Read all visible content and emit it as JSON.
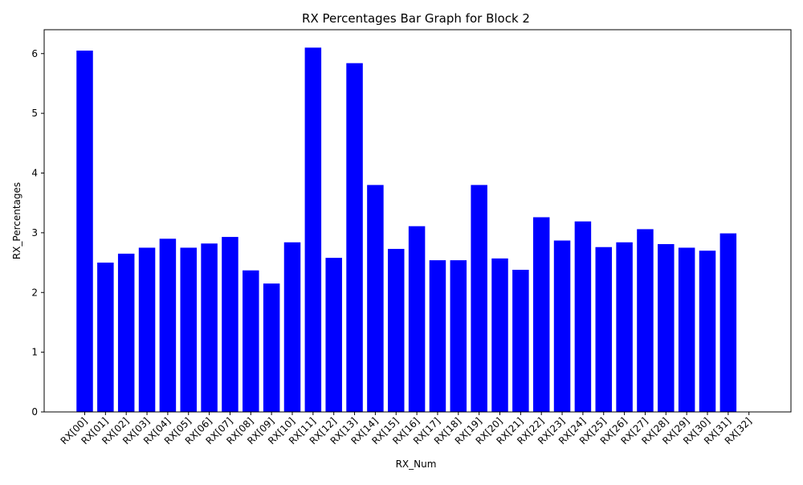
{
  "chart_data": {
    "type": "bar",
    "title": "RX Percentages Bar Graph for Block 2",
    "xlabel": "RX_Num",
    "ylabel": "RX_Percentages",
    "bar_color": "#0000ff",
    "categories": [
      "RX[00]",
      "RX[01]",
      "RX[02]",
      "RX[03]",
      "RX[04]",
      "RX[05]",
      "RX[06]",
      "RX[07]",
      "RX[08]",
      "RX[09]",
      "RX[10]",
      "RX[11]",
      "RX[12]",
      "RX[13]",
      "RX[14]",
      "RX[15]",
      "RX[16]",
      "RX[17]",
      "RX[18]",
      "RX[19]",
      "RX[20]",
      "RX[21]",
      "RX[22]",
      "RX[23]",
      "RX[24]",
      "RX[25]",
      "RX[26]",
      "RX[27]",
      "RX[28]",
      "RX[29]",
      "RX[30]",
      "RX[31]",
      "RX[32]"
    ],
    "values": [
      6.05,
      2.5,
      2.65,
      2.75,
      2.9,
      2.75,
      2.82,
      2.93,
      2.37,
      2.15,
      2.84,
      6.1,
      2.58,
      5.84,
      3.8,
      2.73,
      3.11,
      2.54,
      2.54,
      3.8,
      2.57,
      2.38,
      3.26,
      2.87,
      3.19,
      2.76,
      2.84,
      3.06,
      2.81,
      2.75,
      2.7,
      2.99,
      0
    ],
    "yticks": [
      "0",
      "1",
      "2",
      "3",
      "4",
      "5",
      "6"
    ],
    "ylim": [
      0,
      6.4
    ],
    "grid": false,
    "legend": false
  }
}
